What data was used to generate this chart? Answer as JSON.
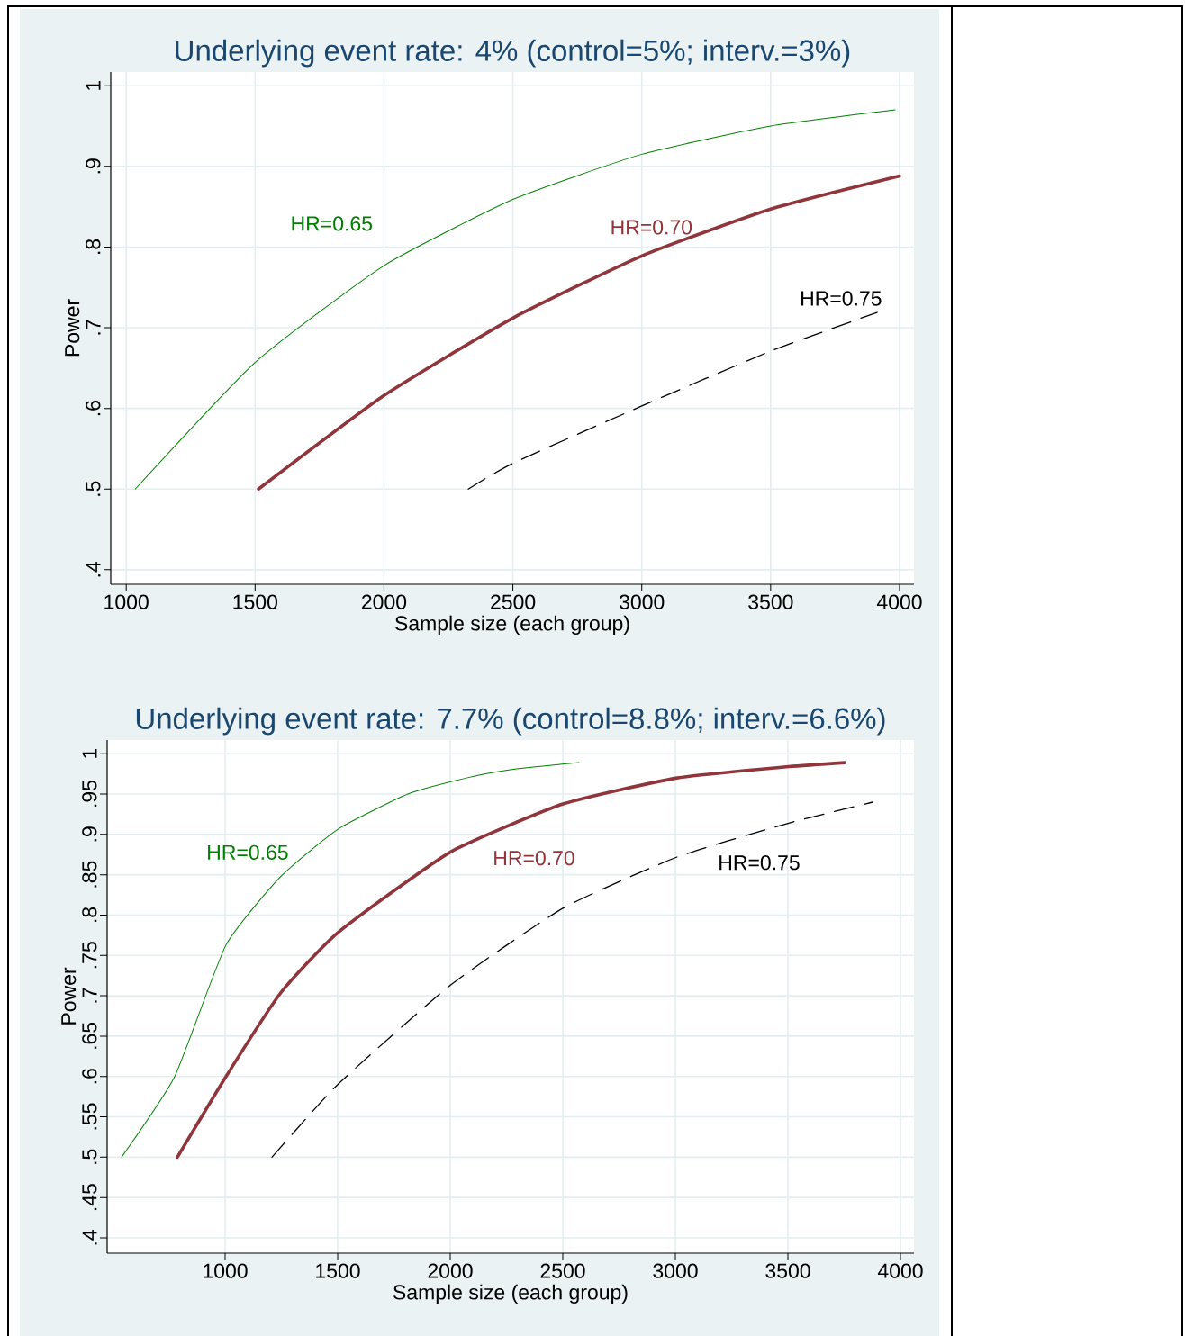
{
  "chart_data": [
    {
      "type": "line",
      "title": "Underlying event rate: 4% (control=5%; interv.=3%)",
      "xlabel": "Sample size (each group)",
      "ylabel": "Power",
      "xlim": [
        940,
        4056
      ],
      "ylim": [
        0.382,
        1.017
      ],
      "xticks": [
        1000,
        1500,
        2000,
        2500,
        3000,
        3500,
        4000
      ],
      "yticks": [
        {
          "value": 0.4,
          "label": ".4"
        },
        {
          "value": 0.5,
          "label": ".5"
        },
        {
          "value": 0.6,
          "label": ".6"
        },
        {
          "value": 0.7,
          "label": ".7"
        },
        {
          "value": 0.8,
          "label": ".8"
        },
        {
          "value": 0.9,
          "label": ".9"
        },
        1
      ],
      "grid": true,
      "series": [
        {
          "color": "#008000",
          "line_style": "solid",
          "x": [
            1035,
            1500,
            2000,
            2500,
            3000,
            3500,
            3983
          ],
          "values": [
            0.5,
            0.657,
            0.777,
            0.859,
            0.915,
            0.95,
            0.97
          ]
        },
        {
          "color": "#90353b",
          "line_style": "solid",
          "x": [
            1513,
            2000,
            2500,
            3000,
            3500,
            4000
          ],
          "values": [
            0.5,
            0.616,
            0.712,
            0.789,
            0.847,
            0.888
          ]
        },
        {
          "color": "#000000",
          "line_style": "dashed",
          "x": [
            2327,
            2500,
            3000,
            3500,
            3913
          ],
          "values": [
            0.5,
            0.532,
            0.603,
            0.671,
            0.719
          ]
        }
      ],
      "annotations": [
        "HR=0.65",
        "HR=0.70",
        "HR=0.75"
      ]
    },
    {
      "type": "line",
      "title": "Underlying event rate: 7.7% (control=8.8%; interv.=6.6%)",
      "xlabel": "Sample size (each group)",
      "ylabel": "Power",
      "xlim": [
        476,
        4060
      ],
      "ylim": [
        0.381,
        1.017
      ],
      "xticks": [
        1000,
        1500,
        2000,
        2500,
        3000,
        3500,
        4000
      ],
      "yticks": [
        {
          "value": 0.4,
          "label": ".4"
        },
        {
          "value": 0.45,
          "label": ".45"
        },
        {
          "value": 0.5,
          "label": ".5"
        },
        {
          "value": 0.55,
          "label": ".55"
        },
        {
          "value": 0.6,
          "label": ".6"
        },
        {
          "value": 0.65,
          "label": ".65"
        },
        {
          "value": 0.7,
          "label": ".7"
        },
        {
          "value": 0.75,
          "label": ".75"
        },
        {
          "value": 0.8,
          "label": ".8"
        },
        {
          "value": 0.85,
          "label": ".85"
        },
        {
          "value": 0.9,
          "label": ".9"
        },
        {
          "value": 0.95,
          "label": ".95"
        },
        1
      ],
      "grid": true,
      "series": [
        {
          "color": "#008000",
          "line_style": "solid",
          "x": [
            540,
            776,
            1004,
            1248,
            1504,
            1812,
            2072,
            2260,
            2572
          ],
          "values": [
            0.5,
            0.6,
            0.763,
            0.848,
            0.907,
            0.95,
            0.97,
            0.98,
            0.989
          ]
        },
        {
          "color": "#90353b",
          "line_style": "solid",
          "x": [
            788,
            1004,
            1248,
            1504,
            2000,
            2504,
            3008,
            3504,
            3752
          ],
          "values": [
            0.5,
            0.6,
            0.704,
            0.779,
            0.878,
            0.938,
            0.97,
            0.984,
            0.989
          ]
        },
        {
          "color": "#000000",
          "line_style": "dashed",
          "x": [
            1208,
            1500,
            2000,
            2504,
            3008,
            3504,
            3876
          ],
          "values": [
            0.5,
            0.59,
            0.713,
            0.809,
            0.872,
            0.914,
            0.94
          ]
        }
      ],
      "annotations": [
        "HR=0.65",
        "HR=0.70",
        "HR=0.75"
      ]
    }
  ]
}
